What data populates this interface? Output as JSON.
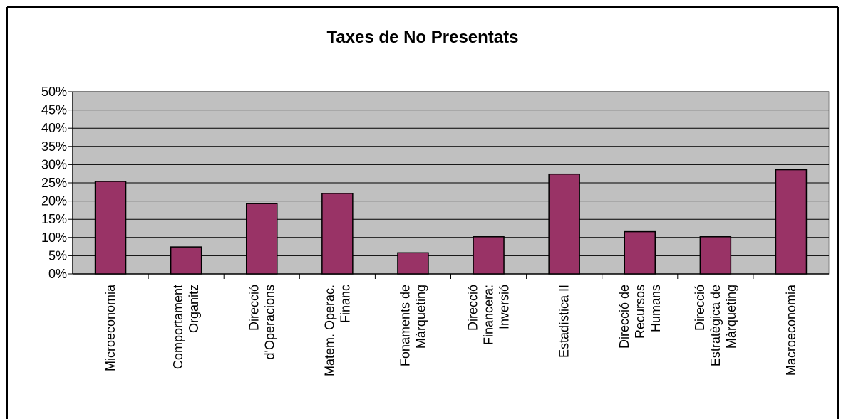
{
  "chart_data": {
    "type": "bar",
    "title": "Taxes de No Presentats",
    "xlabel": "",
    "ylabel": "",
    "ylim": [
      0,
      50
    ],
    "y_ticks": [
      "0%",
      "5%",
      "10%",
      "15%",
      "20%",
      "25%",
      "30%",
      "35%",
      "40%",
      "45%",
      "50%"
    ],
    "y_unit": "%",
    "grid": true,
    "legend": "none",
    "categories": [
      [
        "Microeconomia"
      ],
      [
        "Comportament",
        "Organitz"
      ],
      [
        "Direcció",
        "d'Operacions"
      ],
      [
        "Matem. Operac.",
        "Financ"
      ],
      [
        "Fonaments de",
        "Màrqueting"
      ],
      [
        "Direcció",
        "Financera:",
        "Inversió"
      ],
      [
        "Estadística II"
      ],
      [
        "Direcció de",
        "Recursos",
        "Humans"
      ],
      [
        "Direcció",
        "Estratègica de",
        "Màrqueting"
      ],
      [
        "Macroeconomia"
      ]
    ],
    "values": [
      25.4,
      7.4,
      19.3,
      22.1,
      5.8,
      10.2,
      27.4,
      11.6,
      10.2,
      28.6
    ],
    "colors": {
      "bar": "#993366",
      "plot_bg": "#c0c0c0",
      "gridline": "#000000"
    }
  }
}
